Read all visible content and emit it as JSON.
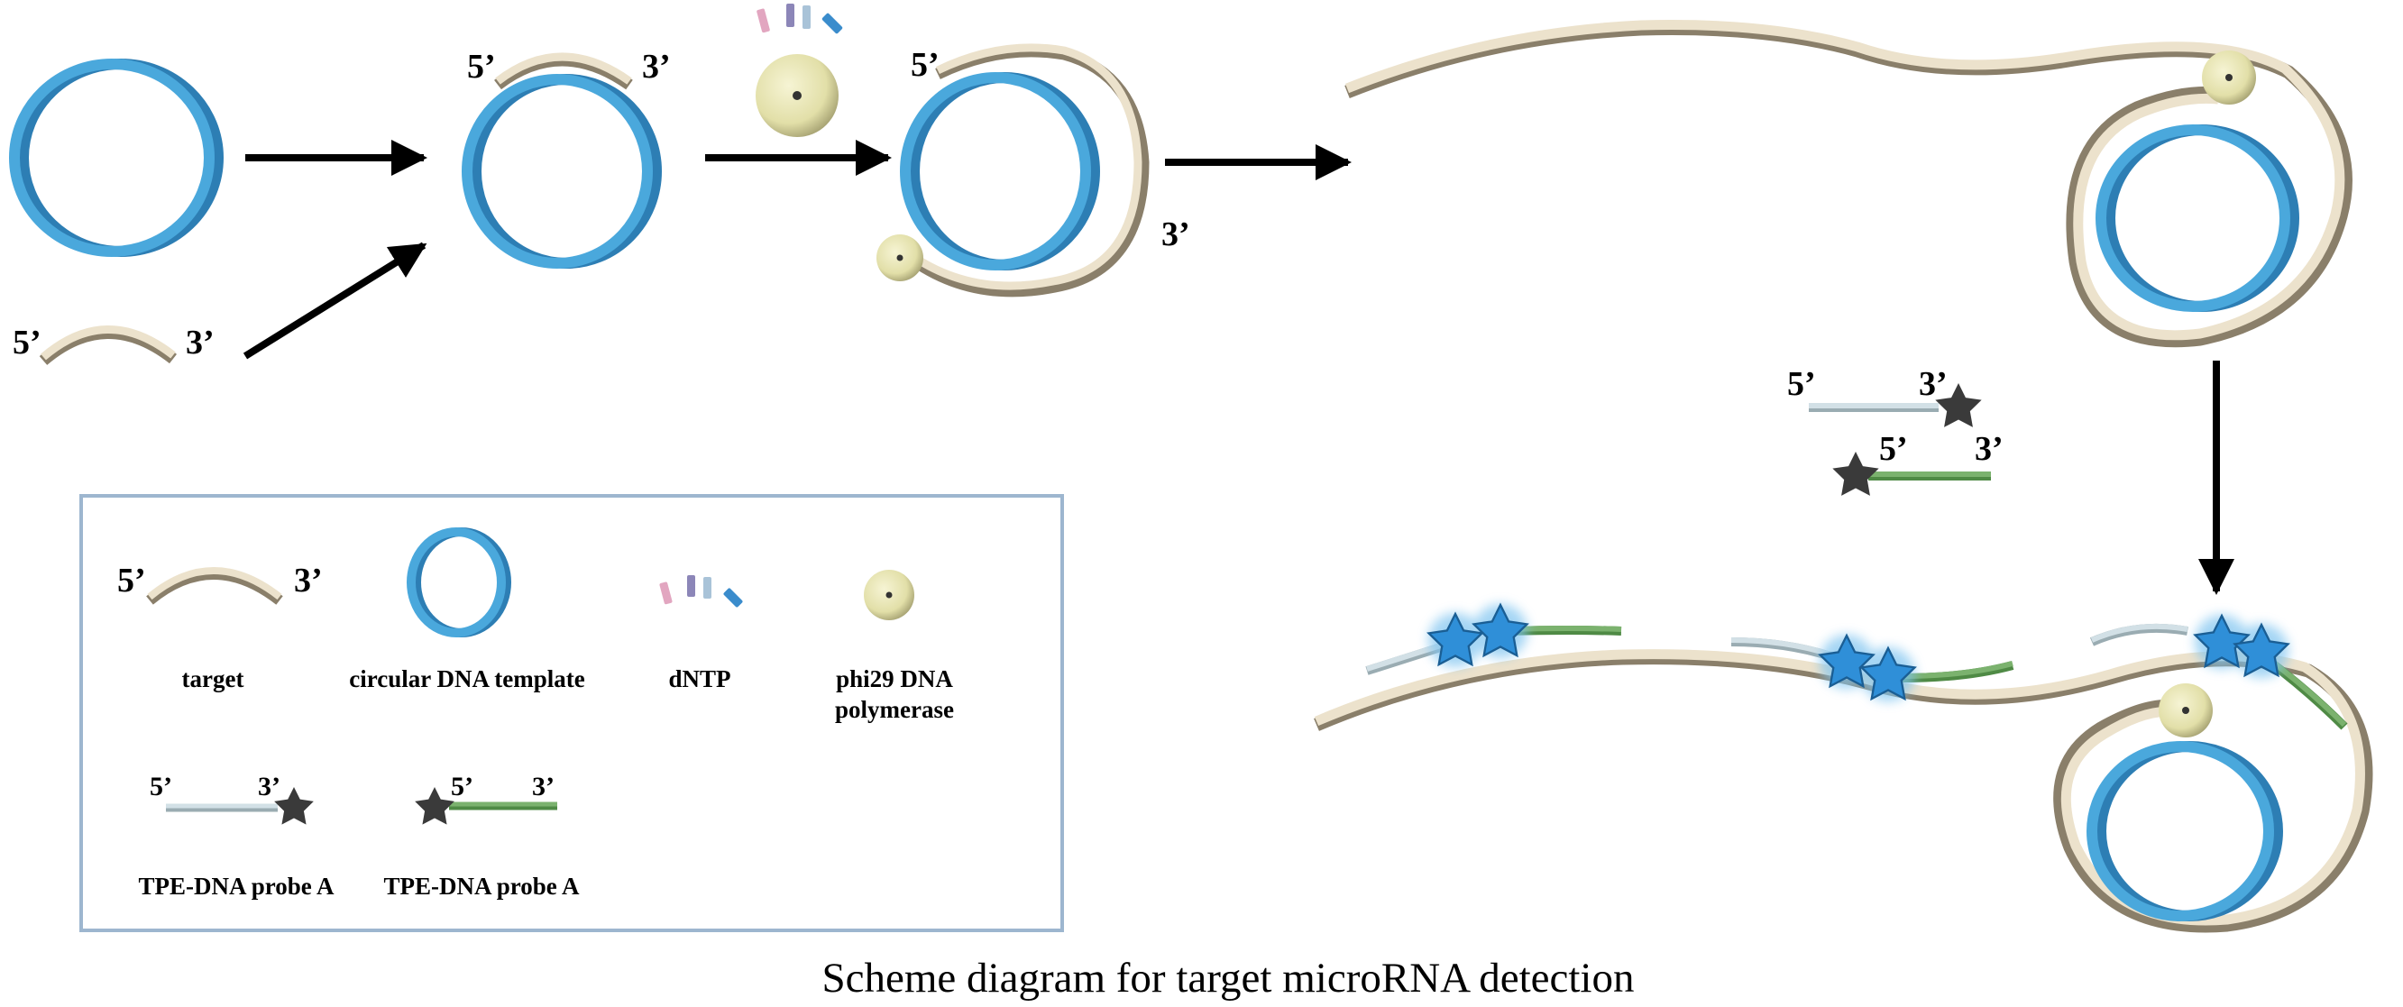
{
  "strand_labels": {
    "five": "5’",
    "three": "3’"
  },
  "legend": {
    "items": [
      {
        "label": "target",
        "icon": "target-strand"
      },
      {
        "label": "circular DNA template",
        "icon": "circular-template"
      },
      {
        "label": "dNTP",
        "icon": "dntp-bars"
      },
      {
        "label_line1": "phi29 DNA",
        "label_line2": "polymerase",
        "icon": "polymerase-sphere"
      },
      {
        "label": "TPE-DNA probe A",
        "icon": "probe-a-star-3prime"
      },
      {
        "label": "TPE-DNA probe A",
        "icon": "probe-star-5prime"
      }
    ]
  },
  "caption": "Scheme diagram for target microRNA detection",
  "colors": {
    "template_blue": "#4aa8dc",
    "strand_beige": "#ece2cc",
    "probe_gray_blue": "#d2e0e6",
    "probe_green": "#7bb26e",
    "star_dark": "#3a3a3a",
    "star_lit": "#2f8fd8",
    "polymerase": "#e2dfa8",
    "legend_border": "#9db6cf"
  }
}
